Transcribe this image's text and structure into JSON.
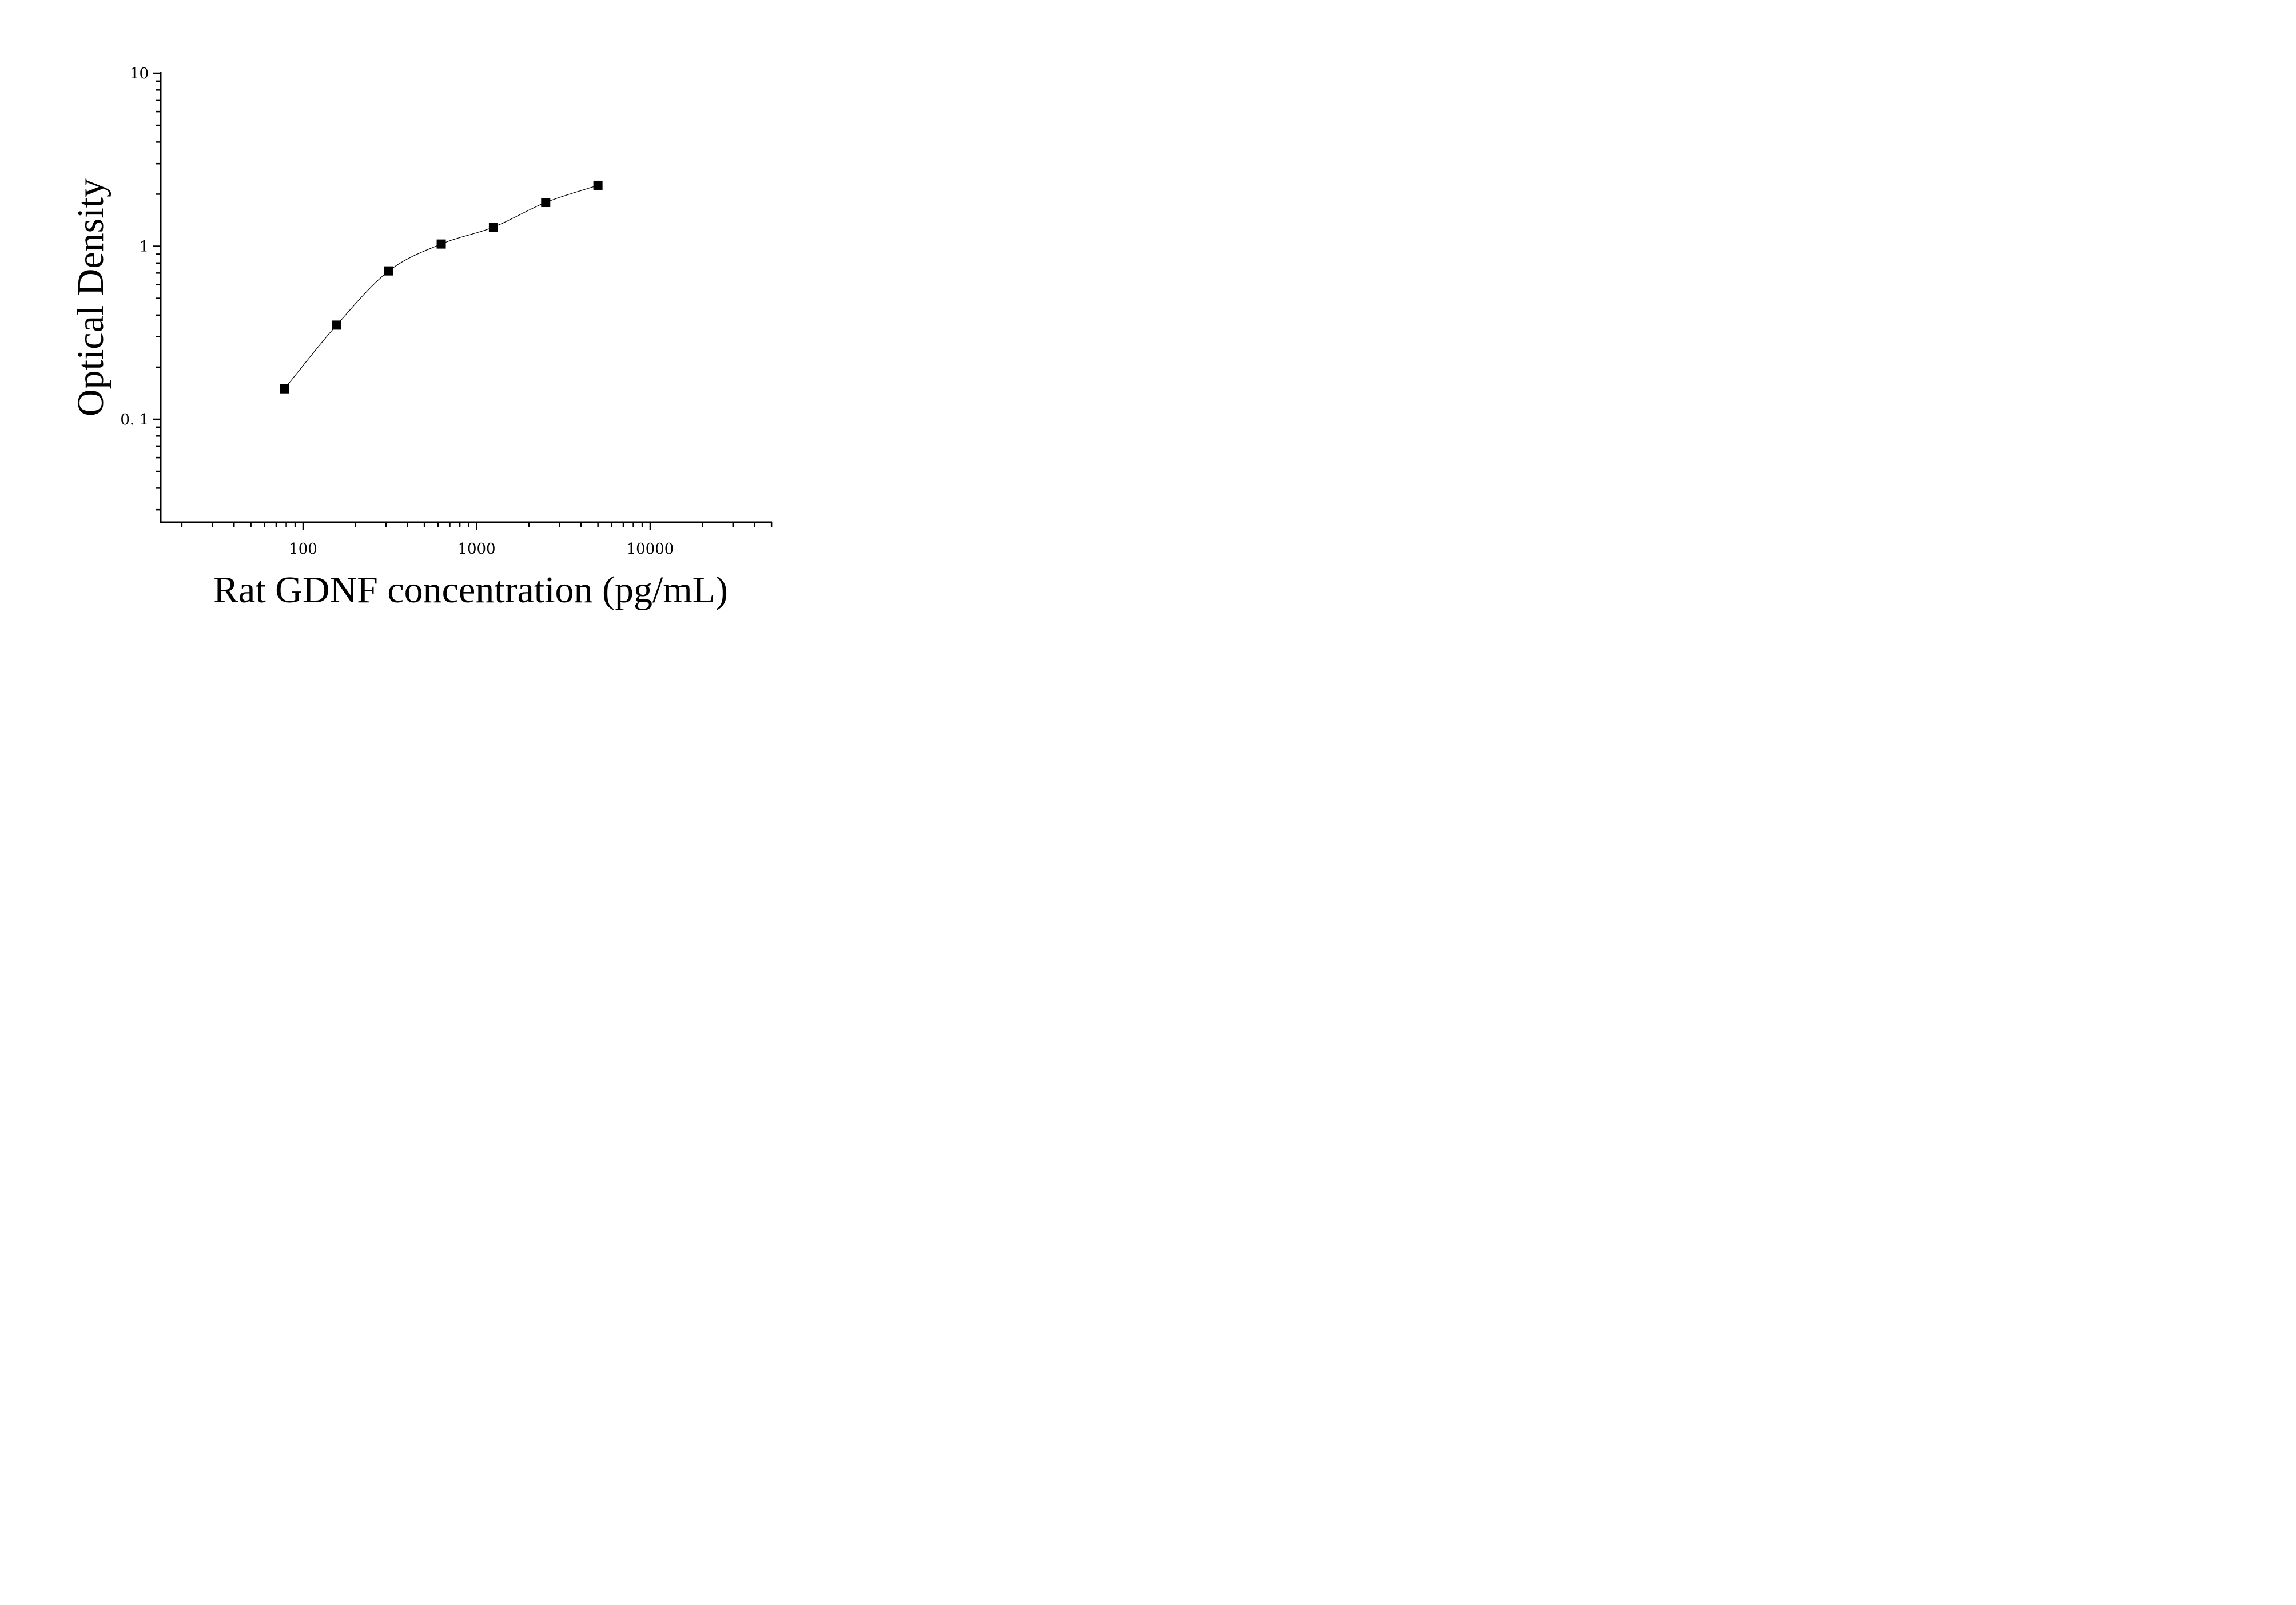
{
  "chart_data": {
    "type": "scatter",
    "xlabel": "Rat GDNF concentration (pg/mL)",
    "ylabel": "Optical Density",
    "xscale": "log",
    "yscale": "log",
    "xlim": [
      15,
      50000
    ],
    "ylim": [
      0.025,
      10
    ],
    "x_tick_labels": [
      {
        "value": 100,
        "label": "100"
      },
      {
        "value": 1000,
        "label": "1000"
      },
      {
        "value": 10000,
        "label": "10000"
      }
    ],
    "y_tick_labels": [
      {
        "value": 0.1,
        "label": "0. 1"
      },
      {
        "value": 1,
        "label": "1"
      },
      {
        "value": 10,
        "label": "10"
      }
    ],
    "grid": false,
    "legend": "none",
    "marker": "square",
    "fit_line": true,
    "series": [
      {
        "x": [
          78,
          156,
          312,
          625,
          1250,
          2500,
          5000
        ],
        "y": [
          0.15,
          0.35,
          0.72,
          1.03,
          1.29,
          1.79,
          2.25
        ]
      }
    ]
  }
}
